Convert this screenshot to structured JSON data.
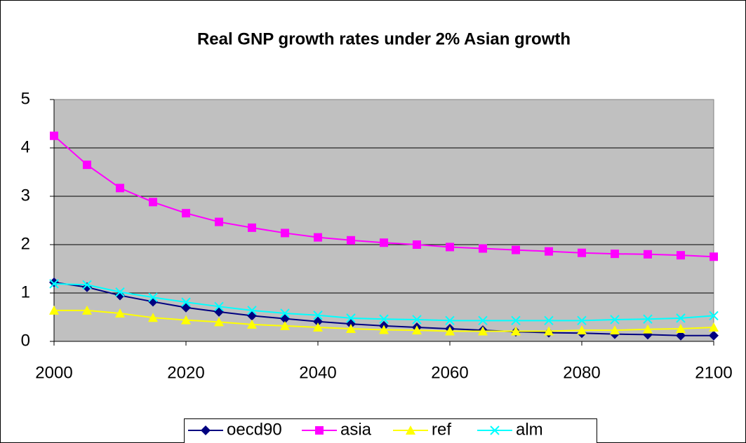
{
  "chart_data": {
    "type": "line",
    "title": "Real GNP growth rates under 2% Asian growth",
    "x": [
      2000,
      2005,
      2010,
      2015,
      2020,
      2025,
      2030,
      2035,
      2040,
      2045,
      2050,
      2055,
      2060,
      2065,
      2070,
      2075,
      2080,
      2085,
      2090,
      2095,
      2100
    ],
    "series": [
      {
        "name": "oecd90",
        "color": "#000080",
        "marker": "diamond",
        "values": [
          1.22,
          1.12,
          0.95,
          0.82,
          0.7,
          0.61,
          0.53,
          0.47,
          0.41,
          0.36,
          0.32,
          0.29,
          0.26,
          0.23,
          0.2,
          0.18,
          0.17,
          0.15,
          0.14,
          0.12,
          0.12
        ]
      },
      {
        "name": "asia",
        "color": "#ff00ff",
        "marker": "square",
        "values": [
          4.25,
          3.65,
          3.17,
          2.88,
          2.65,
          2.47,
          2.35,
          2.24,
          2.15,
          2.09,
          2.04,
          2.0,
          1.95,
          1.92,
          1.89,
          1.86,
          1.83,
          1.81,
          1.8,
          1.78,
          1.75
        ]
      },
      {
        "name": "ref",
        "color": "#ffff00",
        "marker": "triangle",
        "values": [
          0.64,
          0.64,
          0.58,
          0.49,
          0.44,
          0.4,
          0.35,
          0.32,
          0.29,
          0.26,
          0.24,
          0.23,
          0.21,
          0.21,
          0.21,
          0.21,
          0.23,
          0.23,
          0.25,
          0.26,
          0.29
        ]
      },
      {
        "name": "alm",
        "color": "#00ffff",
        "marker": "x",
        "values": [
          1.19,
          1.17,
          1.02,
          0.91,
          0.81,
          0.72,
          0.64,
          0.58,
          0.54,
          0.48,
          0.46,
          0.45,
          0.43,
          0.43,
          0.43,
          0.43,
          0.43,
          0.45,
          0.46,
          0.48,
          0.53
        ]
      }
    ],
    "xlim": [
      2000,
      2100
    ],
    "xticks": [
      2000,
      2020,
      2040,
      2060,
      2080,
      2100
    ],
    "ylim": [
      0,
      5
    ],
    "yticks": [
      0,
      1,
      2,
      3,
      4,
      5
    ],
    "grid": true,
    "legend": "bottom"
  }
}
